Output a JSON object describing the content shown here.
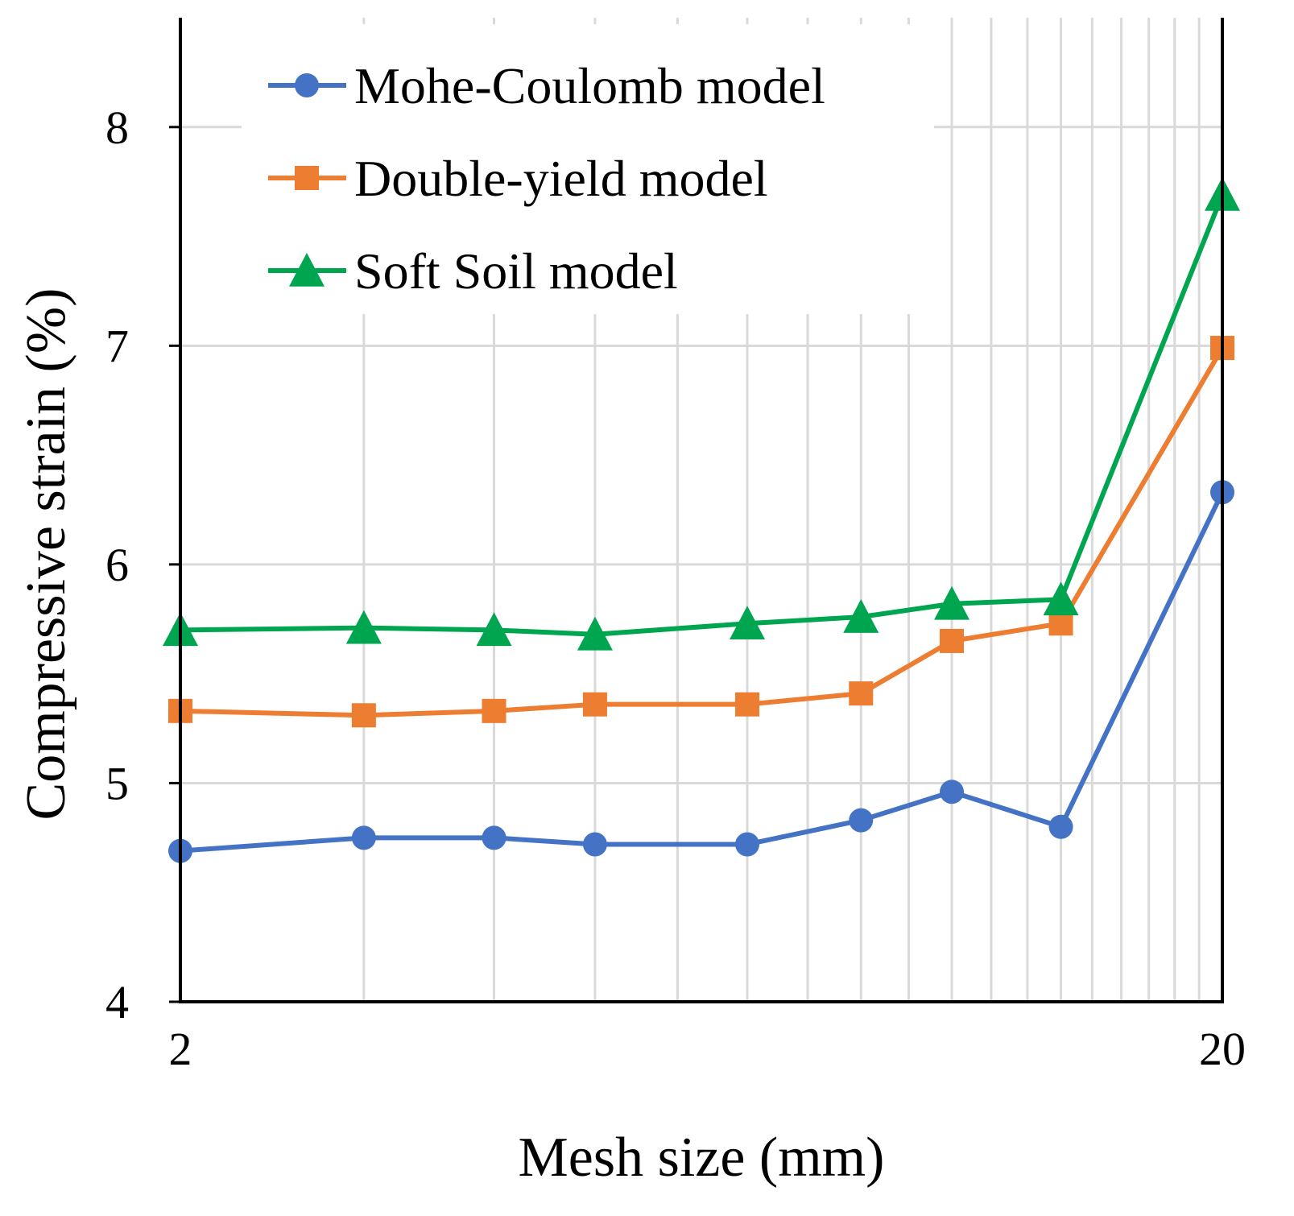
{
  "chart_data": {
    "type": "line",
    "title": "",
    "xlabel": "Mesh size (mm)",
    "ylabel": "Compressive strain (%)",
    "xscale": "log",
    "xlim": [
      2,
      20
    ],
    "ylim": [
      4,
      8.5
    ],
    "xticks": [
      2,
      20
    ],
    "xtick_labels": [
      "2",
      "20"
    ],
    "yticks": [
      4,
      5,
      6,
      7,
      8
    ],
    "ytick_labels": [
      "4",
      "5",
      "6",
      "7",
      "8"
    ],
    "x_minor_gridlines": [
      3,
      4,
      5,
      6,
      7,
      8,
      9,
      10,
      11,
      12,
      13,
      14,
      15,
      16,
      17,
      18,
      19
    ],
    "grid": true,
    "legend_position": "top-left",
    "x": [
      2,
      3,
      4,
      5,
      7,
      9,
      11,
      14,
      20
    ],
    "series": [
      {
        "name": "Mohe-Coulomb model",
        "color": "#4472c4",
        "marker": "circle",
        "values": [
          4.69,
          4.75,
          4.75,
          4.72,
          4.72,
          4.83,
          4.96,
          4.8,
          6.33
        ]
      },
      {
        "name": "Double-yield model",
        "color": "#ed7d31",
        "marker": "square",
        "values": [
          5.33,
          5.31,
          5.33,
          5.36,
          5.36,
          5.41,
          5.65,
          5.73,
          6.99
        ]
      },
      {
        "name": "Soft Soil model",
        "color": "#00a550",
        "marker": "triangle",
        "values": [
          5.7,
          5.71,
          5.7,
          5.68,
          5.73,
          5.76,
          5.82,
          5.84,
          7.69
        ]
      }
    ]
  }
}
